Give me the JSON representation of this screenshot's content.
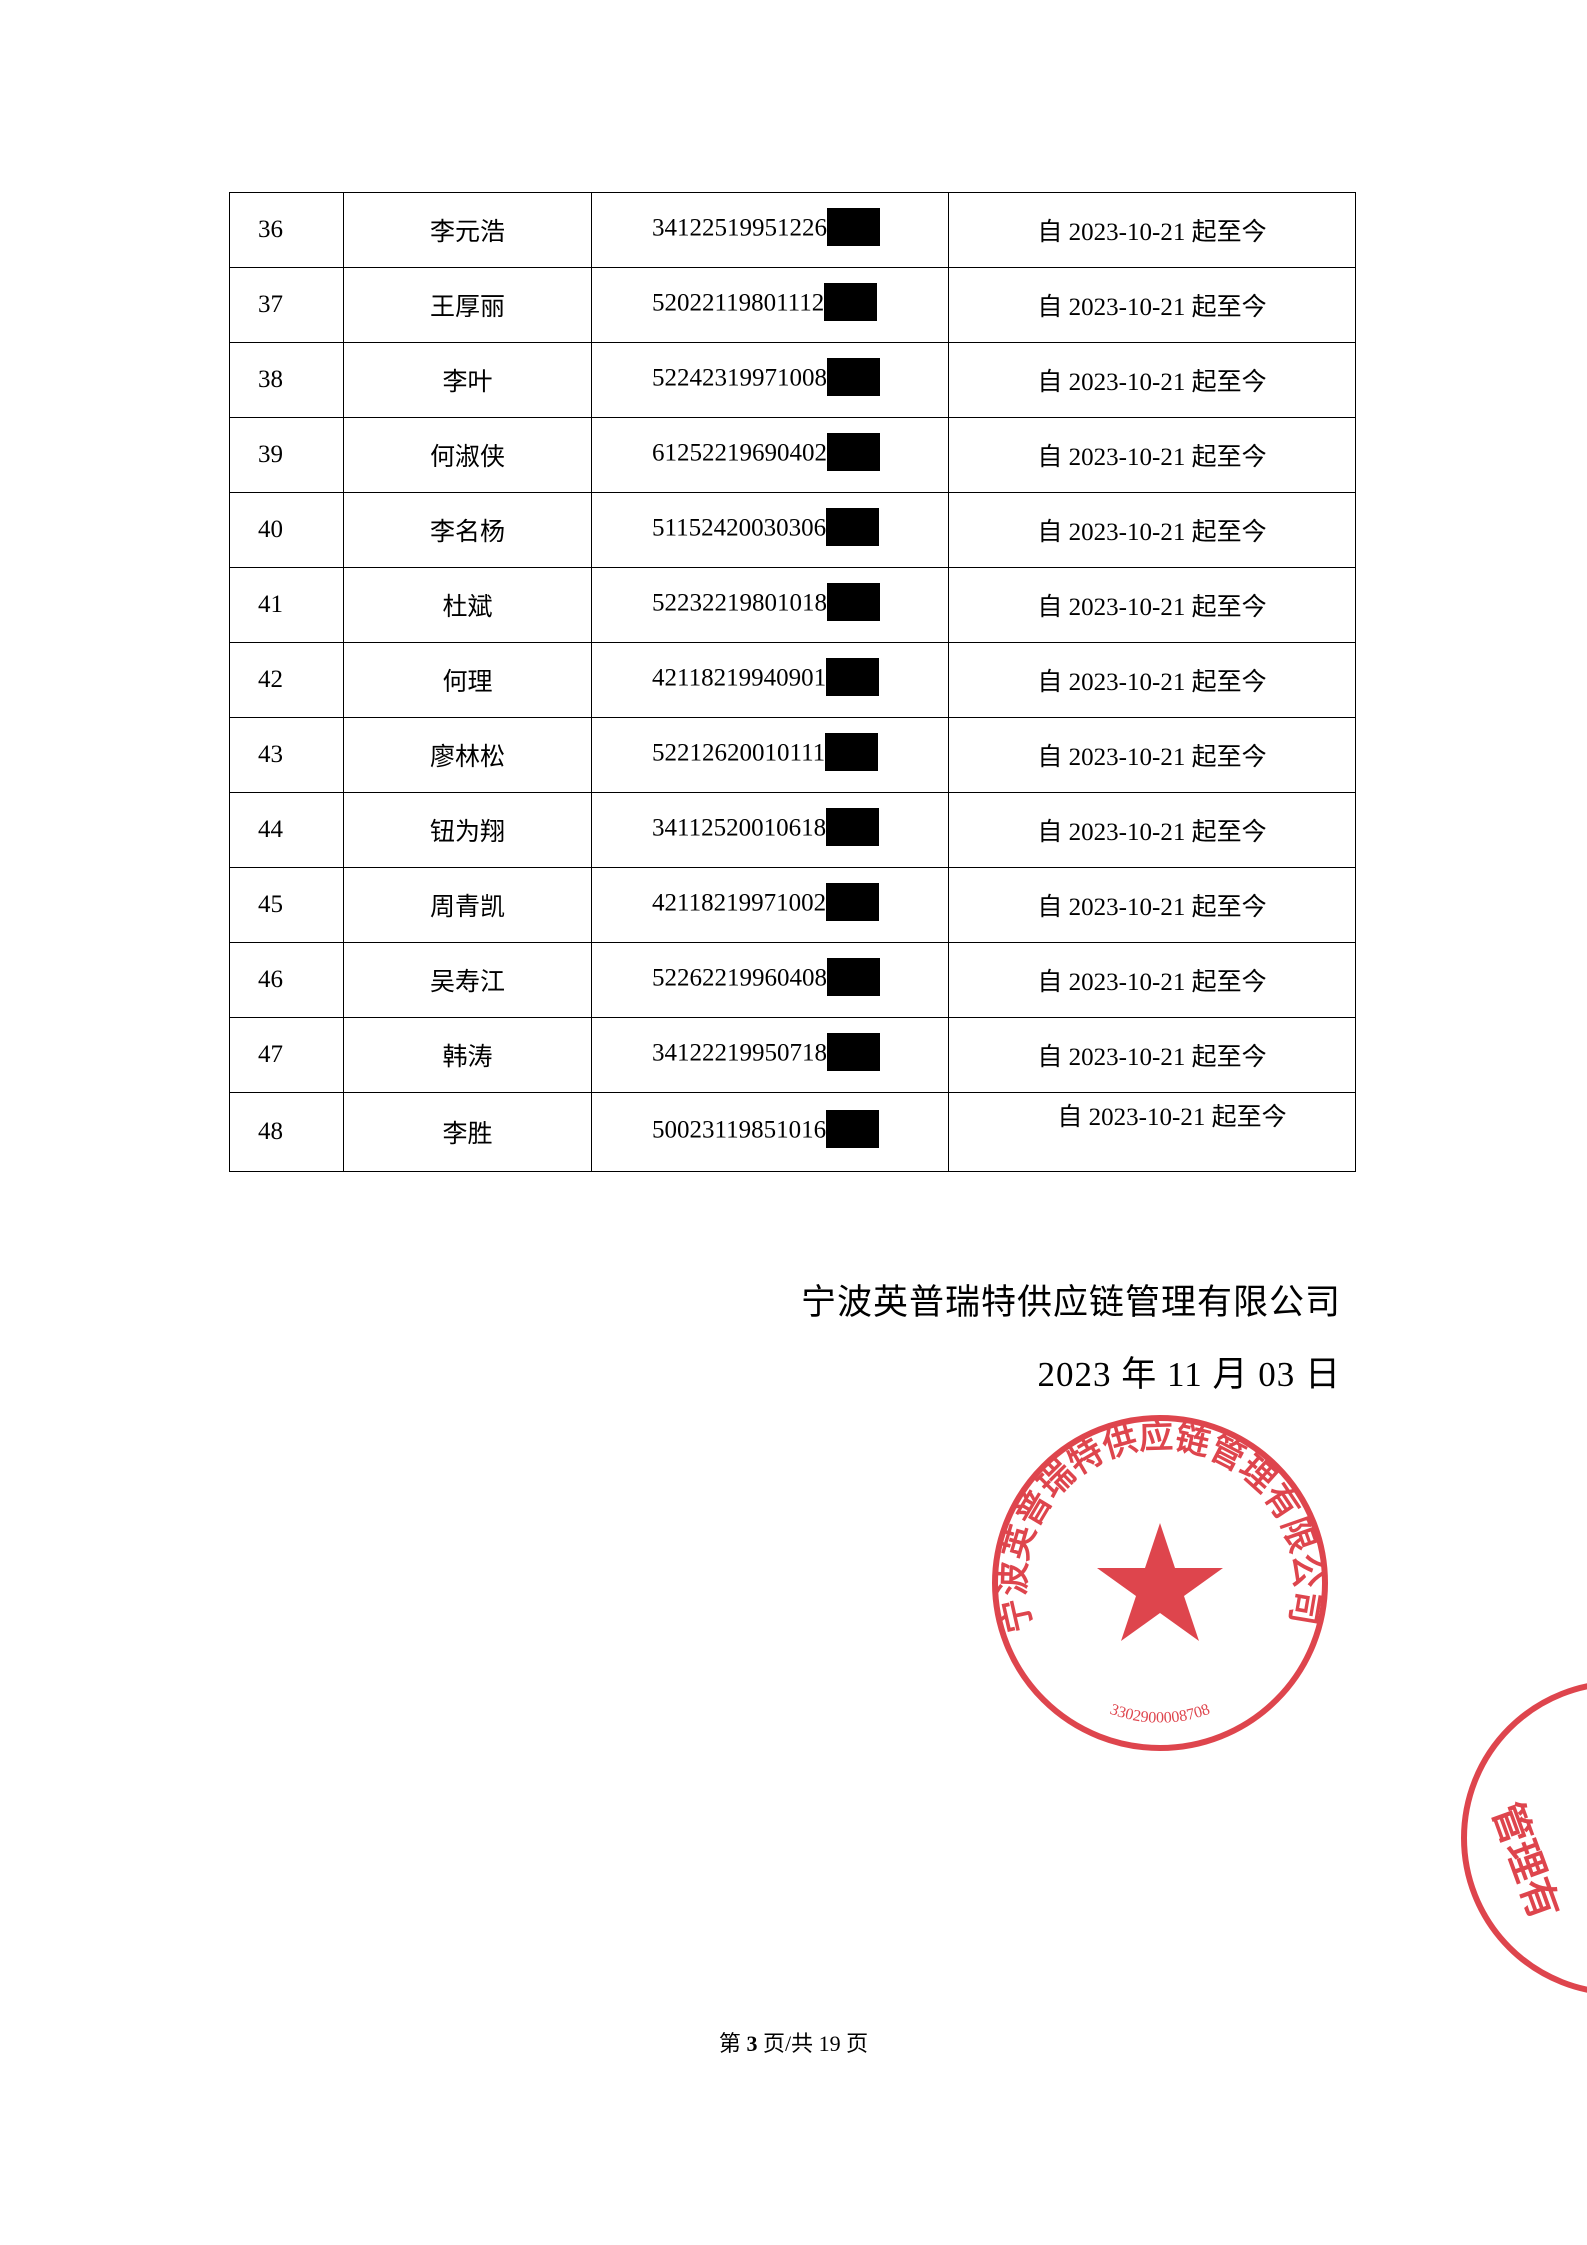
{
  "rows": [
    {
      "no": "36",
      "name": "李元浩",
      "id": "34122519951226",
      "period": "自 2023-10-21 起至今"
    },
    {
      "no": "37",
      "name": "王厚丽",
      "id": "52022119801112",
      "period": "自 2023-10-21 起至今"
    },
    {
      "no": "38",
      "name": "李叶",
      "id": "52242319971008",
      "period": "自 2023-10-21 起至今"
    },
    {
      "no": "39",
      "name": "何淑侠",
      "id": "61252219690402",
      "period": "自 2023-10-21 起至今"
    },
    {
      "no": "40",
      "name": "李名杨",
      "id": "51152420030306",
      "period": "自 2023-10-21 起至今"
    },
    {
      "no": "41",
      "name": "杜斌",
      "id": "52232219801018",
      "period": "自 2023-10-21 起至今"
    },
    {
      "no": "42",
      "name": "何理",
      "id": "42118219940901",
      "period": "自 2023-10-21 起至今"
    },
    {
      "no": "43",
      "name": "廖林松",
      "id": "52212620010111",
      "period": "自 2023-10-21 起至今"
    },
    {
      "no": "44",
      "name": "钮为翔",
      "id": "34112520010618",
      "period": "自 2023-10-21 起至今"
    },
    {
      "no": "45",
      "name": "周青凯",
      "id": "42118219971002",
      "period": "自 2023-10-21 起至今"
    },
    {
      "no": "46",
      "name": "吴寿江",
      "id": "52262219960408",
      "period": "自 2023-10-21 起至今"
    },
    {
      "no": "47",
      "name": "韩涛",
      "id": "34122219950718",
      "period": "自 2023-10-21 起至今"
    },
    {
      "no": "48",
      "name": "李胜",
      "id": "50023119851016",
      "period": "自 2023-10-21 起至今"
    }
  ],
  "signature": {
    "company": "宁波英普瑞特供应链管理有限公司",
    "date": "2023 年 11 月 03 日"
  },
  "stamp": {
    "text": "宁波英普瑞特供应链管理有限公司",
    "code": "3302900008708",
    "color": "#d9252f"
  },
  "footer": {
    "prefix": "第",
    "page": "3",
    "middle": "页/共",
    "total": "19",
    "suffix": "页"
  }
}
